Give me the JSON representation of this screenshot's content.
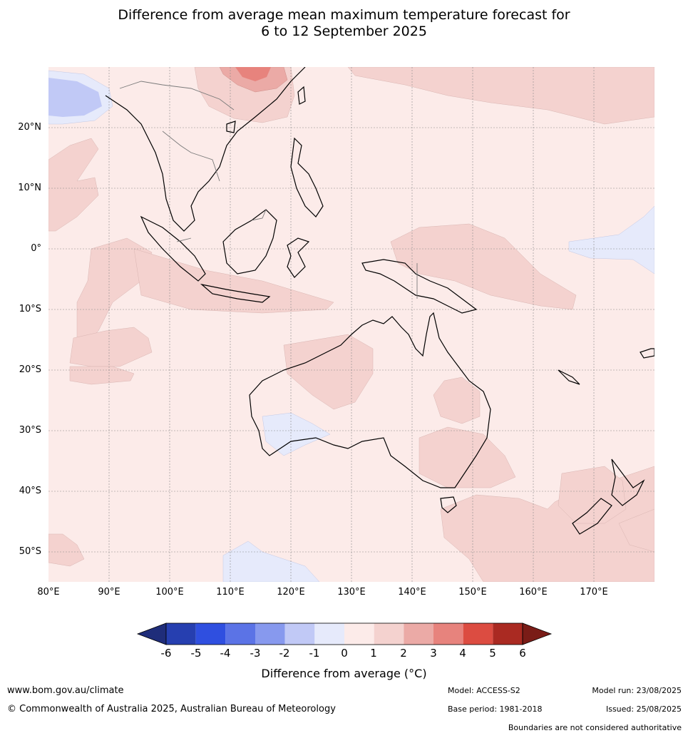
{
  "title_line1": "Difference from average mean maximum temperature forecast for",
  "title_line2": "6 to 12 September 2025",
  "lat_labels": [
    "20°N",
    "10°N",
    "0°",
    "10°S",
    "20°S",
    "30°S",
    "40°S",
    "50°S"
  ],
  "lon_labels": [
    "80°E",
    "90°E",
    "100°E",
    "110°E",
    "120°E",
    "130°E",
    "140°E",
    "150°E",
    "160°E",
    "170°E"
  ],
  "legend": {
    "ticks": [
      "-6",
      "-5",
      "-4",
      "-3",
      "-2",
      "-1",
      "0",
      "1",
      "2",
      "3",
      "4",
      "5",
      "6"
    ],
    "colors": [
      "#1f2d7a",
      "#263fb0",
      "#2f4fe0",
      "#5b73e6",
      "#8799ee",
      "#c1c9f6",
      "#e6eafb",
      "#fcebe9",
      "#f4d2cf",
      "#ebaaa6",
      "#e7837d",
      "#dc4c41",
      "#aa2a22",
      "#7a1c17"
    ],
    "title": "Difference from average (°C)"
  },
  "footer": {
    "website": "www.bom.gov.au/climate",
    "copyright": "© Commonwealth of Australia 2025, Australian Bureau of Meteorology",
    "model": "Model: ACCESS-S2",
    "base_period": "Base period: 1981-2018",
    "model_run": "Model run: 23/08/2025",
    "issued": "Issued: 25/08/2025",
    "disclaimer": "Boundaries are not considered authoritative"
  }
}
